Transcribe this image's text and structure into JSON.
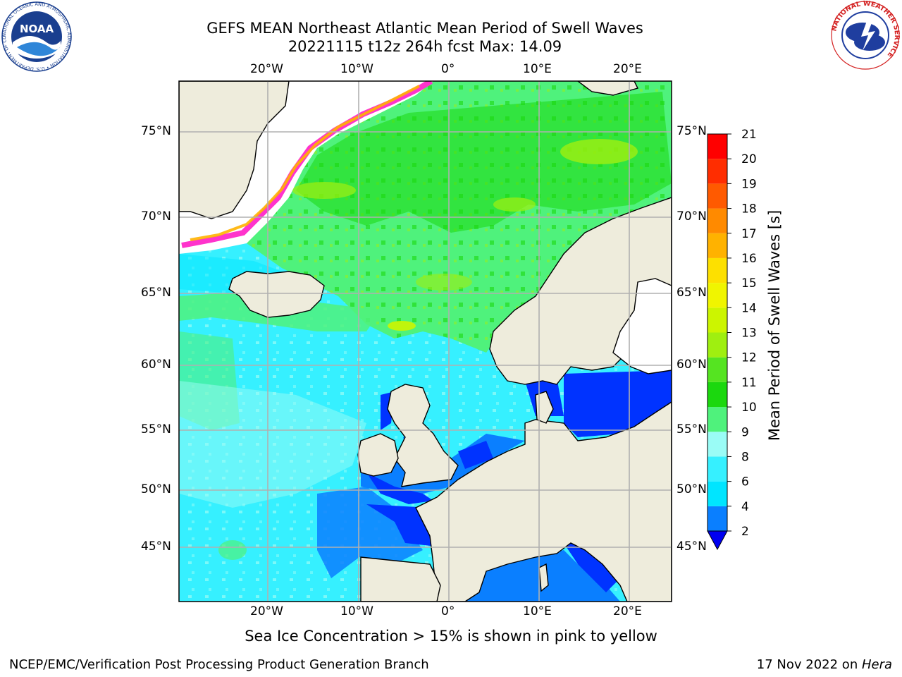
{
  "title": {
    "line1": "GEFS MEAN Northeast Atlantic Mean Period of Swell Waves",
    "line2": "20221115 t12z 264h fcst   Max: 14.09"
  },
  "map": {
    "lon_labels": [
      "20°W",
      "10°W",
      "0°",
      "10°E",
      "20°E"
    ],
    "lat_labels": [
      "75°N",
      "70°N",
      "65°N",
      "60°N",
      "55°N",
      "50°N",
      "45°N"
    ],
    "region": "Northeast Atlantic",
    "land_color": "#eeecdc",
    "grid_color": "#b0b0b0"
  },
  "colorbar": {
    "label": "Mean Period of Swell Waves [s]",
    "ticks": [
      "2",
      "4",
      "6",
      "8",
      "9",
      "10",
      "11",
      "12",
      "13",
      "14",
      "15",
      "16",
      "17",
      "18",
      "19",
      "20",
      "21"
    ],
    "colors": [
      "#0033ff",
      "#0a7fff",
      "#00e5ff",
      "#36f0ff",
      "#9afcf6",
      "#4ff27c",
      "#1bd80e",
      "#55e421",
      "#9fef10",
      "#ccf500",
      "#f0f500",
      "#fde000",
      "#ffb200",
      "#ff8a00",
      "#ff5a00",
      "#ff2d00",
      "#ff0000"
    ],
    "underflow_color": "#0000f0"
  },
  "notes": {
    "sea_ice": "Sea Ice Concentration > 15% is shown in pink to yellow",
    "footer_left": "NCEP/EMC/Verification Post Processing Product Generation Branch",
    "footer_date": "17 Nov 2022 on ",
    "footer_machine": "Hera"
  },
  "logos": {
    "noaa_text": "NOAA",
    "noaa_ring": "NATIONAL OCEANIC AND ATMOSPHERIC ADMINISTRATION • U.S. DEPARTMENT OF COMMERCE",
    "nws_ring": "NATIONAL WEATHER SERVICE"
  }
}
